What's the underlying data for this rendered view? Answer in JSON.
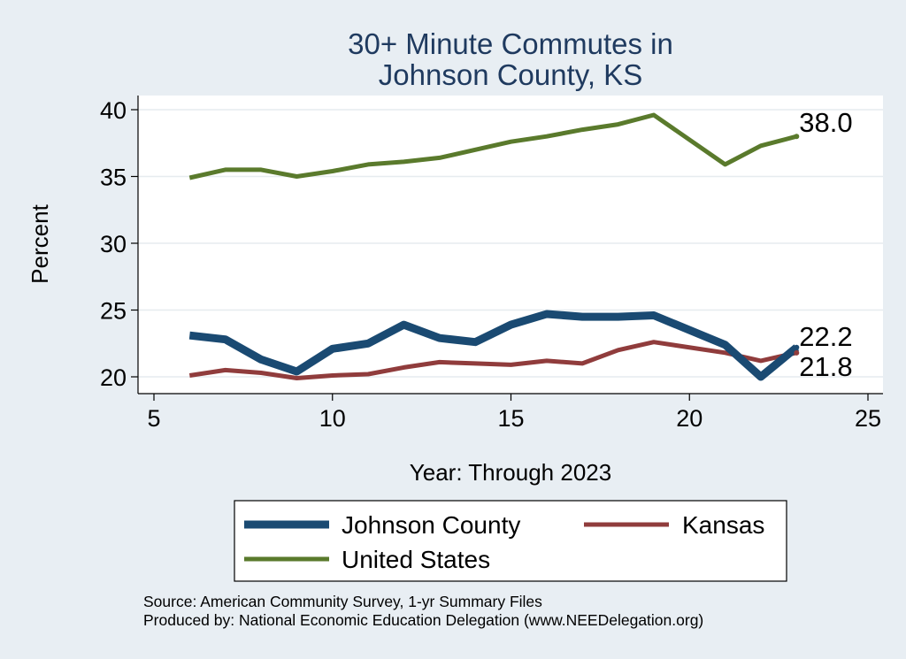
{
  "chart_data": {
    "type": "line",
    "title": [
      "30+ Minute Commutes in",
      "Johnson County, KS"
    ],
    "xlabel": "Year: Through 2023",
    "ylabel": "Percent",
    "xlim": [
      5,
      25
    ],
    "ylim": [
      19,
      41
    ],
    "xticks": [
      5,
      10,
      15,
      20,
      25
    ],
    "yticks": [
      20,
      25,
      30,
      35,
      40
    ],
    "grid": "horizontal",
    "x": [
      6,
      7,
      8,
      9,
      10,
      11,
      12,
      13,
      14,
      15,
      16,
      17,
      18,
      19,
      21,
      22,
      23
    ],
    "series": [
      {
        "name": "Johnson County",
        "color": "#1a4a72",
        "values": [
          23.1,
          22.8,
          21.3,
          20.4,
          22.1,
          22.5,
          23.9,
          22.9,
          22.6,
          23.9,
          24.7,
          24.5,
          24.5,
          24.6,
          22.4,
          20.0,
          22.2
        ],
        "end_label": "22.2"
      },
      {
        "name": "Kansas",
        "color": "#903c3c",
        "values": [
          20.1,
          20.5,
          20.3,
          19.9,
          20.1,
          20.2,
          20.7,
          21.1,
          21.0,
          20.9,
          21.2,
          21.0,
          22.0,
          22.6,
          21.8,
          21.2,
          21.8
        ],
        "end_label": "21.8"
      },
      {
        "name": "United States",
        "color": "#5a7a2c",
        "values": [
          34.9,
          35.5,
          35.5,
          35.0,
          35.4,
          35.9,
          36.1,
          36.4,
          37.0,
          37.6,
          38.0,
          38.5,
          38.9,
          39.6,
          35.9,
          37.3,
          38.0
        ],
        "end_label": "38.0"
      }
    ],
    "legend": [
      "Johnson County",
      "Kansas",
      "United States"
    ],
    "legend_position": "bottom"
  },
  "source": {
    "line1": "Source: American Community Survey, 1-yr Summary Files",
    "line2": "Produced by: National Economic Education Delegation (www.NEEDelegation.org)"
  }
}
